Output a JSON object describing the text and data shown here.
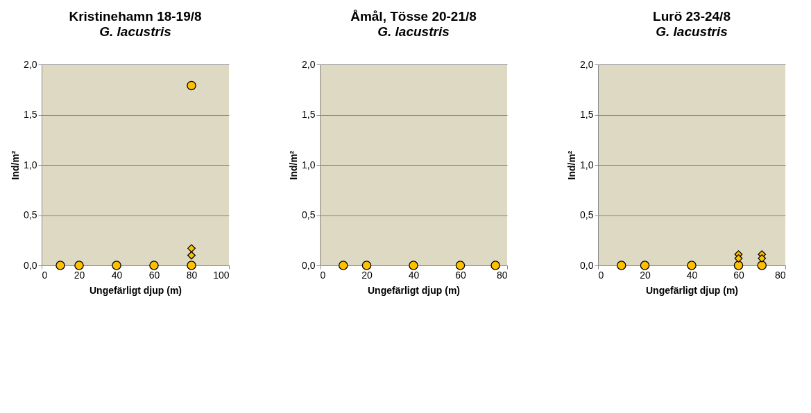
{
  "chart_data": [
    {
      "type": "scatter",
      "title": "Kristinehamn 18-19/8",
      "subtitle": "G. lacustris",
      "xlabel": "Ungefärligt djup (m)",
      "ylabel": "Ind/m²",
      "xlim": [
        0,
        100
      ],
      "xticks": [
        0,
        20,
        40,
        60,
        80,
        100
      ],
      "ylim": [
        0,
        2
      ],
      "yticks": [
        {
          "value": 0,
          "label": "0,0"
        },
        {
          "value": 0.5,
          "label": "0,5"
        },
        {
          "value": 1,
          "label": "1,0"
        },
        {
          "value": 1.5,
          "label": "1,5"
        },
        {
          "value": 2,
          "label": "2,0"
        }
      ],
      "grid": "y",
      "series": [
        {
          "marker": "circle",
          "color": "#ffc000",
          "x": [
            10,
            20,
            40,
            60,
            80,
            80
          ],
          "values": [
            0,
            0,
            0,
            0,
            0,
            1.79
          ]
        },
        {
          "marker": "diamond",
          "color": "#ffc000",
          "x": [
            80,
            80
          ],
          "values": [
            0.17,
            0.1
          ]
        }
      ]
    },
    {
      "type": "scatter",
      "title": "Åmål, Tösse 20-21/8",
      "subtitle": "G. lacustris",
      "xlabel": "Ungefärligt djup (m)",
      "ylabel": "Ind/m²",
      "xlim": [
        0,
        80
      ],
      "xticks": [
        0,
        20,
        40,
        60,
        80
      ],
      "ylim": [
        0,
        2
      ],
      "yticks": [
        {
          "value": 0,
          "label": "0,0"
        },
        {
          "value": 0.5,
          "label": "0,5"
        },
        {
          "value": 1,
          "label": "1,0"
        },
        {
          "value": 1.5,
          "label": "1,5"
        },
        {
          "value": 2,
          "label": "2,0"
        }
      ],
      "grid": "y",
      "series": [
        {
          "marker": "circle",
          "color": "#ffc000",
          "x": [
            10,
            20,
            40,
            60,
            75
          ],
          "values": [
            0,
            0,
            0,
            0,
            0
          ]
        }
      ]
    },
    {
      "type": "scatter",
      "title": "Lurö 23-24/8",
      "subtitle": "G. lacustris",
      "xlabel": "Ungefärligt djup (m)",
      "ylabel": "Ind/m²",
      "xlim": [
        0,
        80
      ],
      "xticks": [
        0,
        20,
        40,
        60,
        80
      ],
      "ylim": [
        0,
        2
      ],
      "yticks": [
        {
          "value": 0,
          "label": "0,0"
        },
        {
          "value": 0.5,
          "label": "0,5"
        },
        {
          "value": 1,
          "label": "1,0"
        },
        {
          "value": 1.5,
          "label": "1,5"
        },
        {
          "value": 2,
          "label": "2,0"
        }
      ],
      "grid": "y",
      "series": [
        {
          "marker": "circle",
          "color": "#ffc000",
          "x": [
            10,
            20,
            40,
            60,
            70
          ],
          "values": [
            0,
            0,
            0,
            0,
            0
          ]
        },
        {
          "marker": "diamond",
          "color": "#ffc000",
          "x": [
            60,
            60,
            70,
            70
          ],
          "values": [
            0.11,
            0.07,
            0.11,
            0.07
          ]
        }
      ]
    }
  ]
}
